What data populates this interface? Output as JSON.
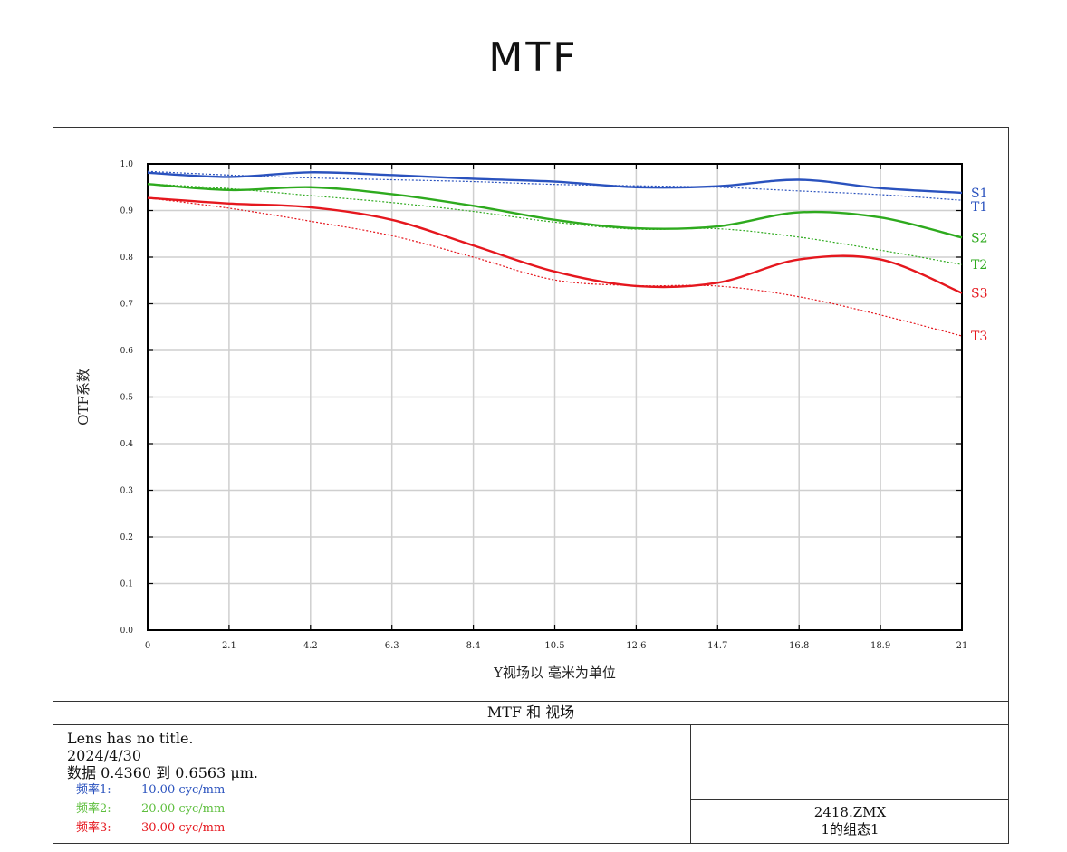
{
  "page_title": "MTF",
  "chart_data": {
    "type": "line",
    "ylabel": "OTF系数",
    "xlabel": "Y视场以 毫米为单位",
    "xlim": [
      0,
      21
    ],
    "ylim": [
      0.0,
      1.0
    ],
    "x_ticks": [
      "0",
      "2.1",
      "4.2",
      "6.3",
      "8.4",
      "10.5",
      "12.6",
      "14.7",
      "16.8",
      "18.9",
      "21"
    ],
    "y_ticks": [
      "0.0",
      "0.1",
      "0.2",
      "0.3",
      "0.4",
      "0.5",
      "0.6",
      "0.7",
      "0.8",
      "0.9",
      "1.0"
    ],
    "grid": true,
    "x": [
      0,
      2.1,
      4.2,
      6.3,
      8.4,
      10.5,
      12.6,
      14.7,
      16.8,
      18.9,
      21
    ],
    "series": [
      {
        "name": "S1",
        "color": "#2a52be",
        "style": "solid",
        "values": [
          0.981,
          0.972,
          0.982,
          0.976,
          0.968,
          0.962,
          0.95,
          0.952,
          0.966,
          0.948,
          0.938
        ]
      },
      {
        "name": "T1",
        "color": "#2a52be",
        "style": "dotted",
        "values": [
          0.984,
          0.976,
          0.97,
          0.966,
          0.962,
          0.956,
          0.953,
          0.95,
          0.942,
          0.934,
          0.922
        ]
      },
      {
        "name": "S2",
        "color": "#2eaa1e",
        "style": "solid",
        "values": [
          0.957,
          0.944,
          0.95,
          0.935,
          0.91,
          0.88,
          0.862,
          0.866,
          0.896,
          0.885,
          0.842
        ]
      },
      {
        "name": "T2",
        "color": "#2eaa1e",
        "style": "dotted",
        "values": [
          0.957,
          0.947,
          0.932,
          0.917,
          0.898,
          0.875,
          0.86,
          0.861,
          0.843,
          0.815,
          0.784
        ]
      },
      {
        "name": "S3",
        "color": "#e5171e",
        "style": "solid",
        "values": [
          0.927,
          0.915,
          0.907,
          0.88,
          0.825,
          0.769,
          0.738,
          0.745,
          0.795,
          0.795,
          0.723
        ]
      },
      {
        "name": "T3",
        "color": "#e5171e",
        "style": "dotted",
        "values": [
          0.927,
          0.905,
          0.877,
          0.846,
          0.8,
          0.751,
          0.739,
          0.738,
          0.715,
          0.676,
          0.631
        ]
      }
    ]
  },
  "footer": {
    "title": "MTF 和 视场",
    "lens_title": "Lens has no title.",
    "date": "2024/4/30",
    "data_range": "数据 0.4360 到 0.6563 μm.",
    "frequencies": [
      {
        "label": "频率1:",
        "value": "10.00 cyc/mm",
        "color": "#2a52be"
      },
      {
        "label": "频率2:",
        "value": "20.00 cyc/mm",
        "color": "#5fbf3f"
      },
      {
        "label": "频率3:",
        "value": "30.00 cyc/mm",
        "color": "#e5171e"
      }
    ],
    "file_name": "2418.ZMX",
    "config": "1的组态1"
  }
}
